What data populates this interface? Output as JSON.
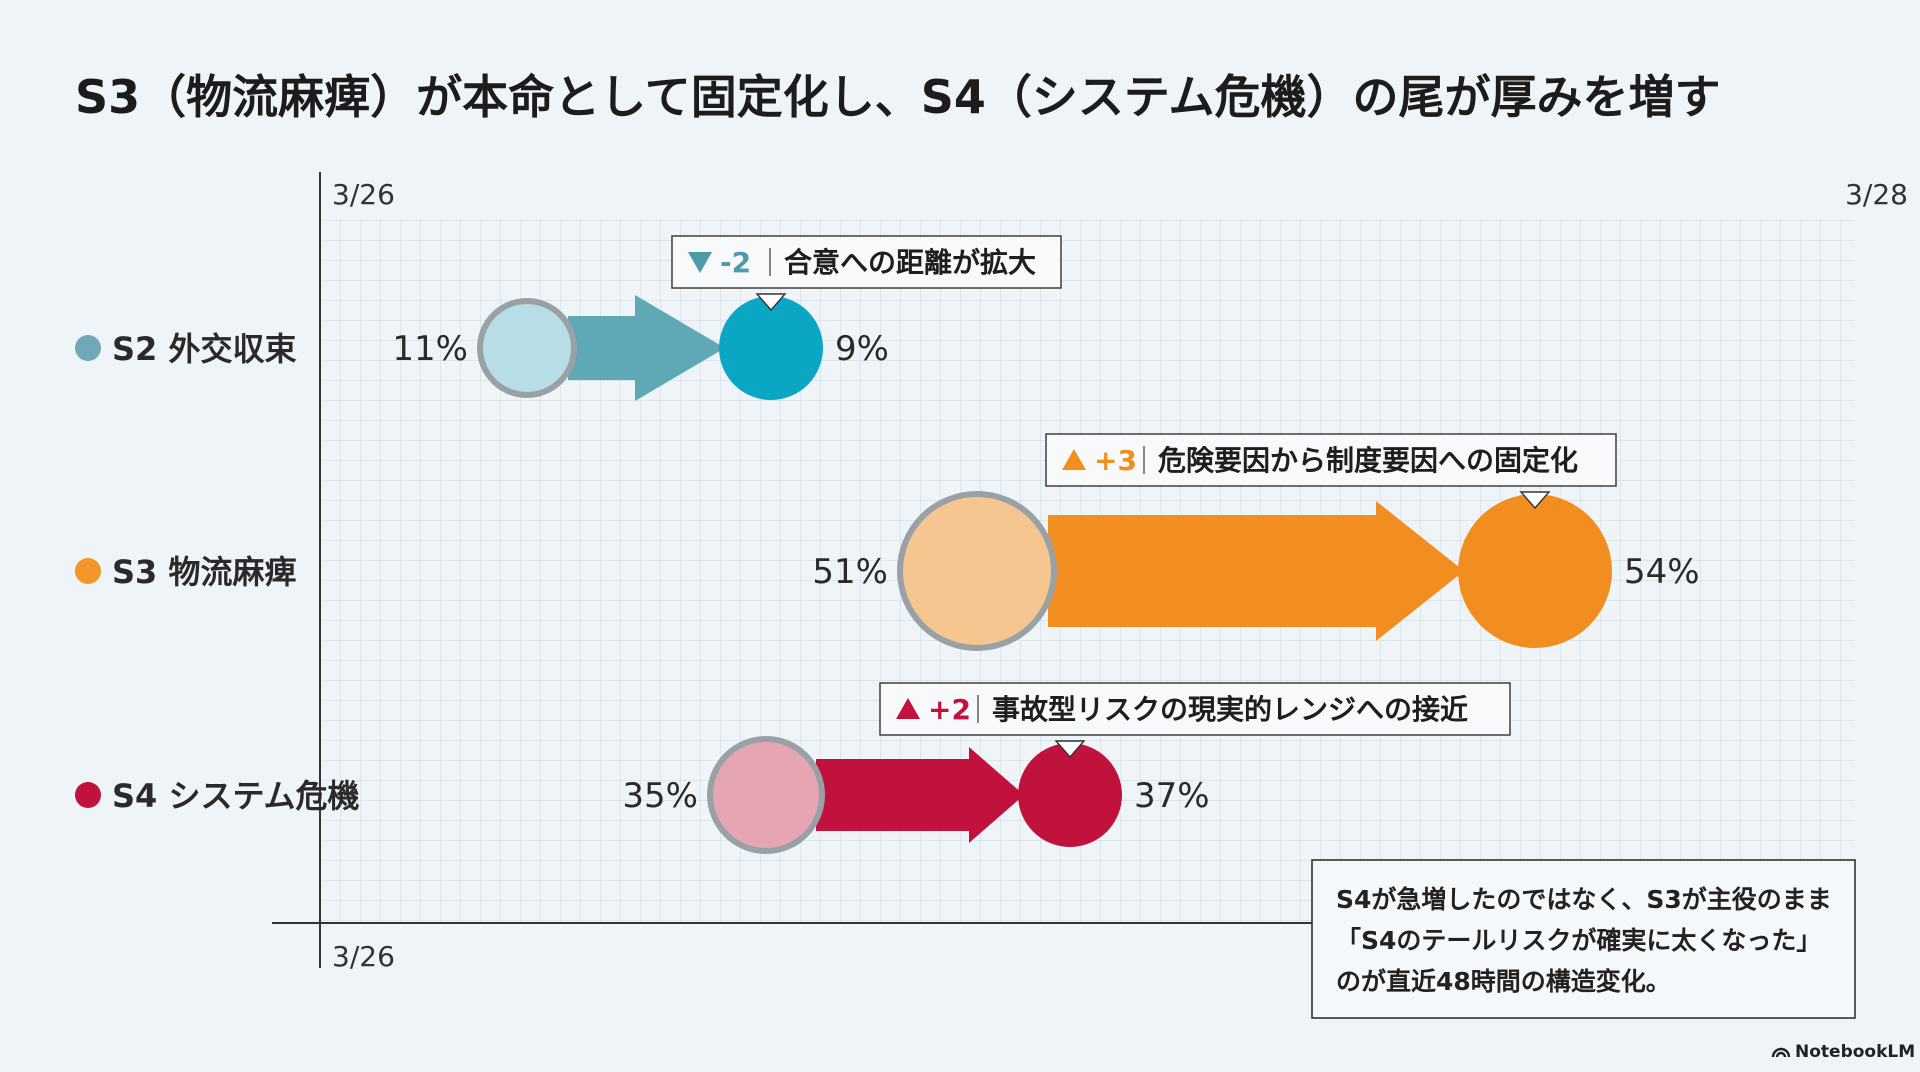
{
  "chart_data": {
    "type": "dumbbell",
    "title": "S3（物流麻痺）が本命として固定化し、S4（システム危機）の尾が厚みを増す",
    "date_top_left": "3/26",
    "date_top_right": "3/28",
    "date_bottom_left": "3/26",
    "xlim": [
      0,
      60
    ],
    "unit": "%",
    "series": [
      {
        "name": "S2 外交収束",
        "from": 11,
        "to": 9,
        "from_label": "11%",
        "to_label": "9%",
        "delta": "-2",
        "direction": "down",
        "annotation": "合意への距離が拡大",
        "color": "#0aa6c4",
        "faded": "#b7dde6",
        "arrow": "#5fa9b6",
        "dot": "#6fa9b8"
      },
      {
        "name": "S3 物流麻痺",
        "from": 51,
        "to": 54,
        "from_label": "51%",
        "to_label": "54%",
        "delta": "+3",
        "direction": "up",
        "annotation": "危険要因から制度要因への固定化",
        "color": "#f18e1f",
        "faded": "#f6c690",
        "arrow": "#f18e1f",
        "dot": "#f29627"
      },
      {
        "name": "S4 システム危機",
        "from": 35,
        "to": 37,
        "from_label": "35%",
        "to_label": "37%",
        "delta": "+2",
        "direction": "up",
        "annotation": "事故型リスクの現実的レンジへの接近",
        "color": "#c0123c",
        "faded": "#e6a5b3",
        "arrow": "#c0123c",
        "dot": "#c0123c"
      }
    ],
    "note": [
      "S4が急増したのではなく、S3が主役のまま",
      "「S4のテールリスクが確実に太くなった」",
      "のが直近48時間の構造変化。"
    ]
  },
  "brand": "NotebookLM",
  "colors": {
    "background": "#eef4f8",
    "grid": "#c9d6df",
    "axis": "#333333"
  }
}
